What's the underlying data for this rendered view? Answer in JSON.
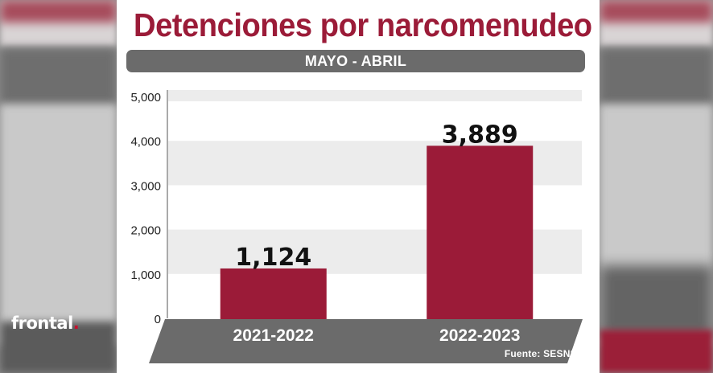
{
  "brand": {
    "logo_text": "frontal",
    "logo_dot": "."
  },
  "chart_data": {
    "type": "bar",
    "title": "Detenciones por narcomenudeo",
    "subtitle": "MAYO - ABRIL",
    "categories": [
      "2021-2022",
      "2022-2023"
    ],
    "values": [
      1124,
      3889
    ],
    "value_labels": [
      "1,124",
      "3,889"
    ],
    "ylim": [
      0,
      5000
    ],
    "yticks": [
      0,
      1000,
      2000,
      3000,
      4000,
      5000
    ],
    "ytick_labels": [
      "0",
      "1,000",
      "2,000",
      "3,000",
      "4,000",
      "5,000"
    ],
    "grid": "alternating horizontal bands",
    "source": "Fuente: SESNSP",
    "colors": {
      "bar": "#9b1b38",
      "title": "#9b1b38",
      "band": "#ececec",
      "base": "#6b6b6b"
    }
  }
}
